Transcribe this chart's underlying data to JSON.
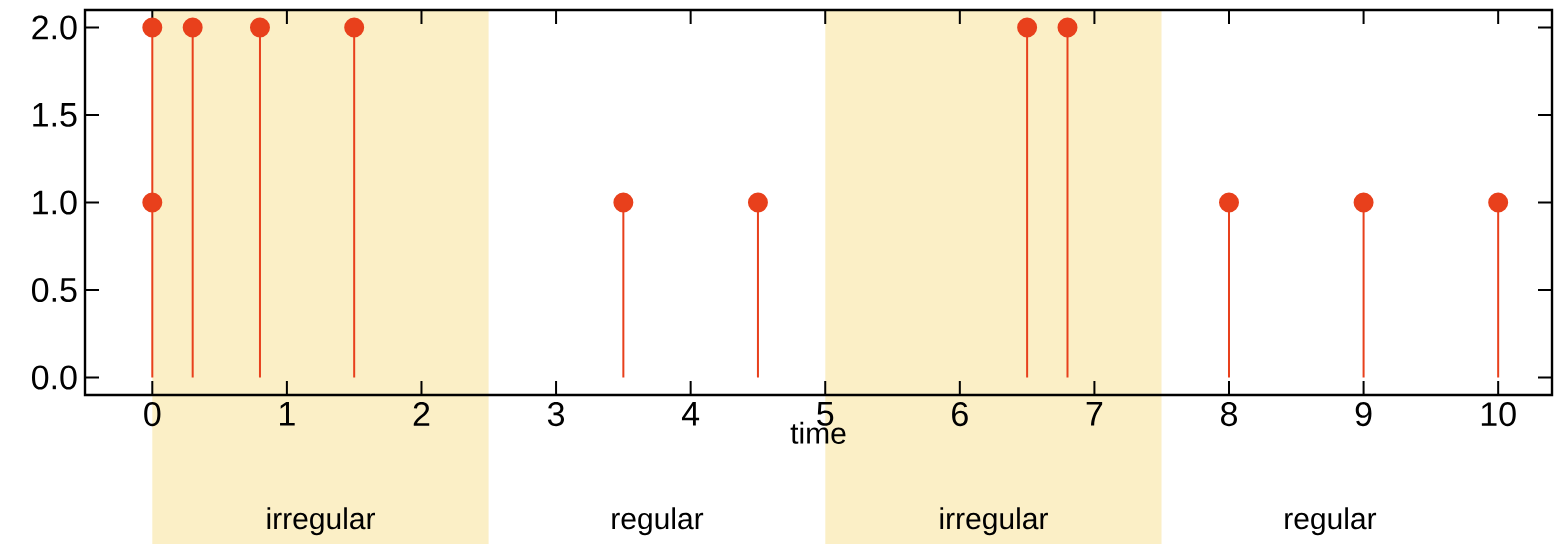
{
  "chart_data": {
    "type": "lollipop",
    "xlabel": "time",
    "x": [
      0,
      0,
      0.3,
      0.8,
      1.5,
      3.5,
      4.5,
      6.5,
      6.8,
      8,
      9,
      10
    ],
    "values": [
      2,
      1,
      2,
      2,
      2,
      1,
      1,
      2,
      2,
      1,
      1,
      1
    ],
    "color": "#e8401c",
    "marker": "circle",
    "xlim": [
      -0.5,
      10.4
    ],
    "ylim": [
      -0.1,
      2.1
    ],
    "xticks": [
      0,
      1,
      2,
      3,
      4,
      5,
      6,
      7,
      8,
      9,
      10
    ],
    "yticks": [
      {
        "value": 0,
        "label": "0.0"
      },
      {
        "value": 0.5,
        "label": "0.5"
      },
      {
        "value": 1,
        "label": "1.0"
      },
      {
        "value": 1.5,
        "label": "1.5"
      },
      {
        "value": 2,
        "label": "2.0"
      }
    ],
    "bands": [
      {
        "axis": "x",
        "from": 0,
        "to": 2.5,
        "label": "irregular",
        "color": "#fbefc6"
      },
      {
        "axis": "x",
        "from": 2.5,
        "to": 5,
        "label": "regular",
        "color": "#ffffff"
      },
      {
        "axis": "x",
        "from": 5,
        "to": 7.5,
        "label": "irregular",
        "color": "#fbefc6"
      },
      {
        "axis": "x",
        "from": 7.5,
        "to": 10,
        "label": "regular",
        "color": "#ffffff"
      }
    ]
  }
}
